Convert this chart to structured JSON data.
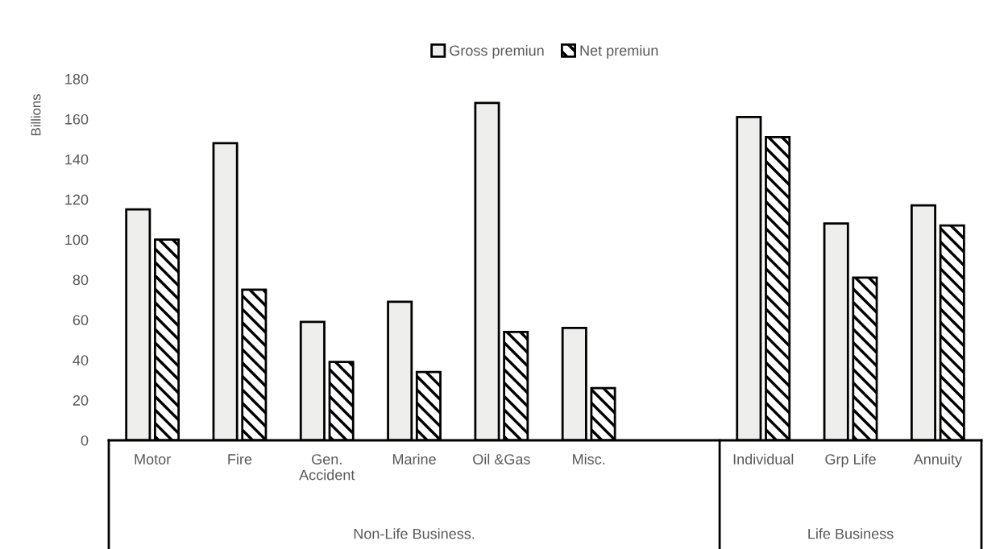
{
  "chart_data": {
    "type": "bar",
    "ylabel": "Billions",
    "categories": [
      "Motor",
      "Fire",
      "Gen.\nAccident",
      "Marine",
      "Oil &Gas",
      "Misc.",
      null,
      "Individual",
      "Grp Life",
      "Annuity"
    ],
    "series": [
      {
        "name": "Gross premiun",
        "color": "#eeeeec",
        "values": [
          115,
          148,
          59,
          69,
          168,
          56,
          null,
          161,
          108,
          117
        ]
      },
      {
        "name": "Net premiun",
        "color": "#000000",
        "values": [
          100,
          75,
          39,
          34,
          54,
          26,
          null,
          151,
          81,
          107
        ]
      }
    ],
    "ylim": [
      0,
      180
    ],
    "yticks": [
      0,
      20,
      40,
      60,
      80,
      100,
      120,
      140,
      160,
      180
    ],
    "grid": false,
    "legend": "top",
    "annotations": [
      "Non-Life Business.",
      "Life Business"
    ]
  }
}
